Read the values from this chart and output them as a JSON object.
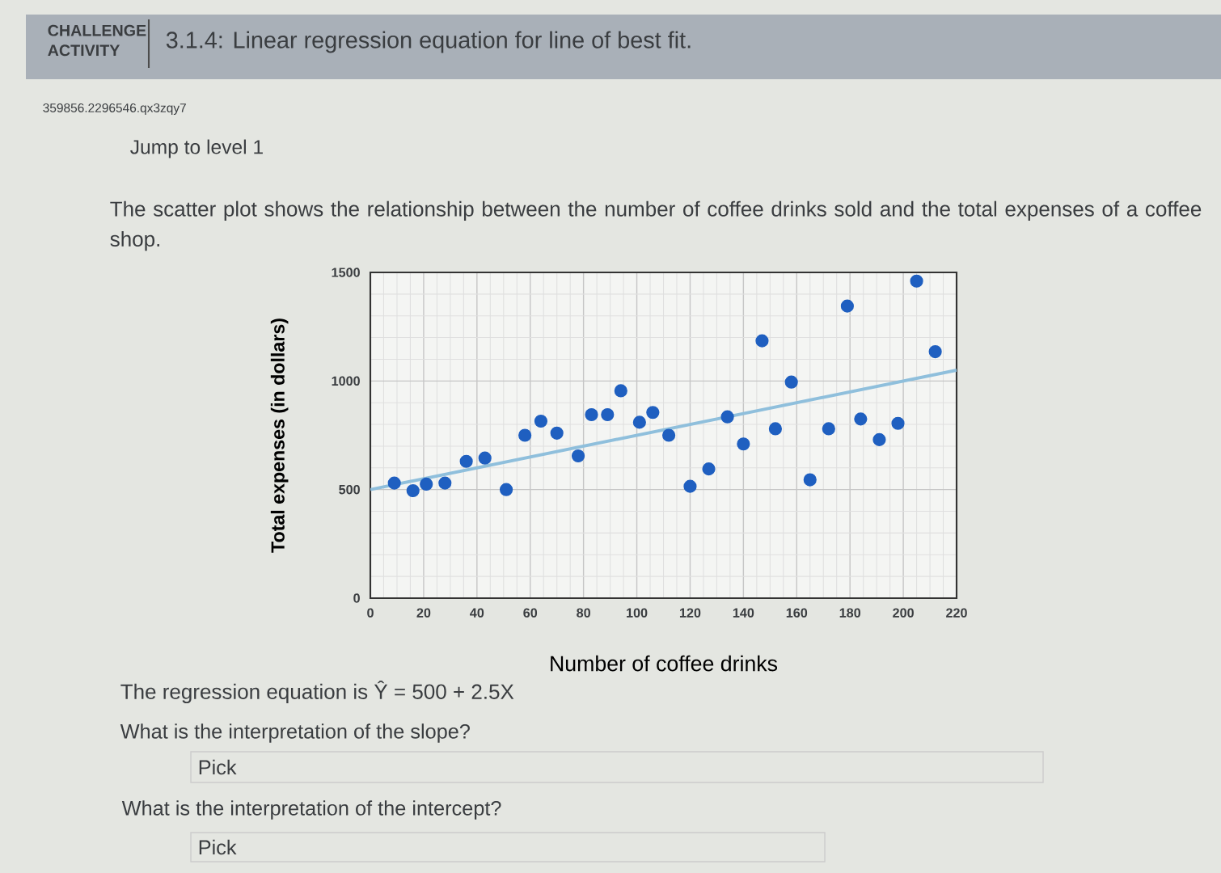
{
  "chart_data": {
    "type": "scatter",
    "title": "3.1.4: Linear regression equation for line of best fit.",
    "subtitle": "The scatter plot shows the relationship between the number of coffee drinks sold and the total expenses of a coffee shop.",
    "xlabel": "Number of coffee drinks",
    "ylabel": "Total expenses (in dollars)",
    "annotations": [
      "CHALLENGE ACTIVITY",
      "359856.2296546.qx3zqy7",
      "Jump to level 1",
      "The regression equation is Ŷ = 500 + 2.5X",
      "What is the interpretation of the slope?",
      "Pick",
      "What is the interpretation of the intercept?",
      "Pick"
    ],
    "series": [
      {
        "color": "#1f5fc0",
        "x": [
          9,
          16,
          21,
          28,
          36,
          43,
          51,
          58,
          64,
          70,
          78,
          83,
          89,
          94,
          101,
          106,
          112,
          120,
          127,
          134,
          140,
          147,
          152,
          158,
          165,
          172,
          179,
          184,
          191,
          198,
          205,
          212
        ],
        "values": [
          530,
          495,
          525,
          530,
          630,
          645,
          500,
          750,
          815,
          760,
          655,
          845,
          845,
          955,
          810,
          855,
          750,
          515,
          595,
          835,
          710,
          1185,
          780,
          995,
          545,
          780,
          1345,
          825,
          730,
          805,
          1460,
          1135
        ]
      },
      {
        "type": "line",
        "color": "#8fbfdc",
        "marker": "none",
        "x": [
          0,
          220
        ],
        "values": [
          500,
          1050
        ]
      }
    ],
    "xlim": [
      0,
      220
    ],
    "ylim": [
      0,
      1500
    ],
    "xticks": [
      0,
      20,
      40,
      60,
      80,
      100,
      120,
      140,
      160,
      180,
      200,
      220
    ],
    "yticks": [
      0,
      500,
      1000,
      1500
    ],
    "grid": true,
    "marker": "circle"
  }
}
